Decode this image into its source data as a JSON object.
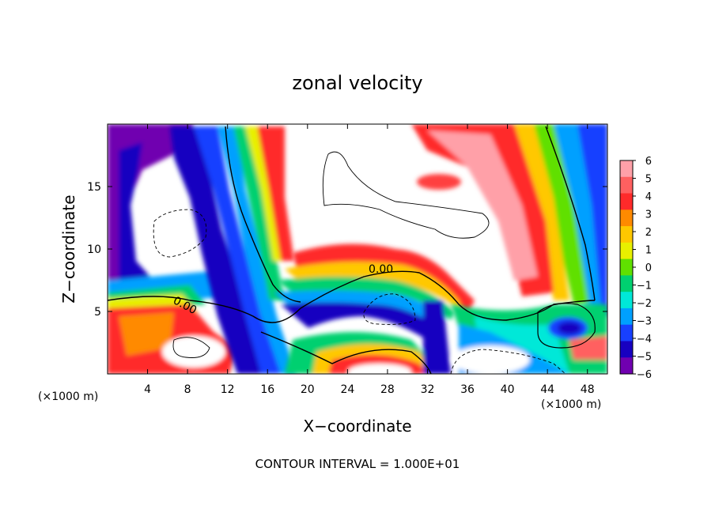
{
  "chart_data": {
    "type": "heatmap",
    "title": "zonal velocity",
    "xlabel": "X−coordinate",
    "ylabel": "Z−coordinate",
    "x_units_left": "(×1000 m)",
    "x_units_right": "(×1000 m)",
    "footer": "CONTOUR INTERVAL = 1.000E+01",
    "xlim": [
      0,
      50
    ],
    "ylim": [
      0,
      20
    ],
    "x_ticks": [
      4,
      8,
      12,
      16,
      20,
      24,
      28,
      32,
      36,
      40,
      44,
      48
    ],
    "y_ticks": [
      5,
      10,
      15
    ],
    "colorbar": {
      "ticks": [
        "6",
        "5",
        "4",
        "3",
        "2",
        "1",
        "0",
        "−1",
        "−2",
        "−3",
        "−4",
        "−5",
        "−6"
      ],
      "range": [
        -6,
        6
      ],
      "colors": [
        "#ffa0a8",
        "#ff6060",
        "#ff2a2a",
        "#ff8a00",
        "#ffc800",
        "#e8f000",
        "#60e000",
        "#00d070",
        "#00e8d8",
        "#00a0ff",
        "#1840ff",
        "#1800c0",
        "#7000b0"
      ]
    },
    "contour_labels": [
      "0.00",
      "0.00"
    ]
  },
  "colors": {
    "white": "#ffffff",
    "purple": "#7000b0",
    "navy": "#1800c0",
    "blue": "#1840ff",
    "sky": "#00a0ff",
    "cyan": "#00e8d8",
    "green": "#00d070",
    "lime": "#60e000",
    "yellow": "#e8f000",
    "orange": "#ff8a00",
    "red": "#ff2a2a",
    "salmon": "#ff6060",
    "pink": "#ffa0a8"
  }
}
